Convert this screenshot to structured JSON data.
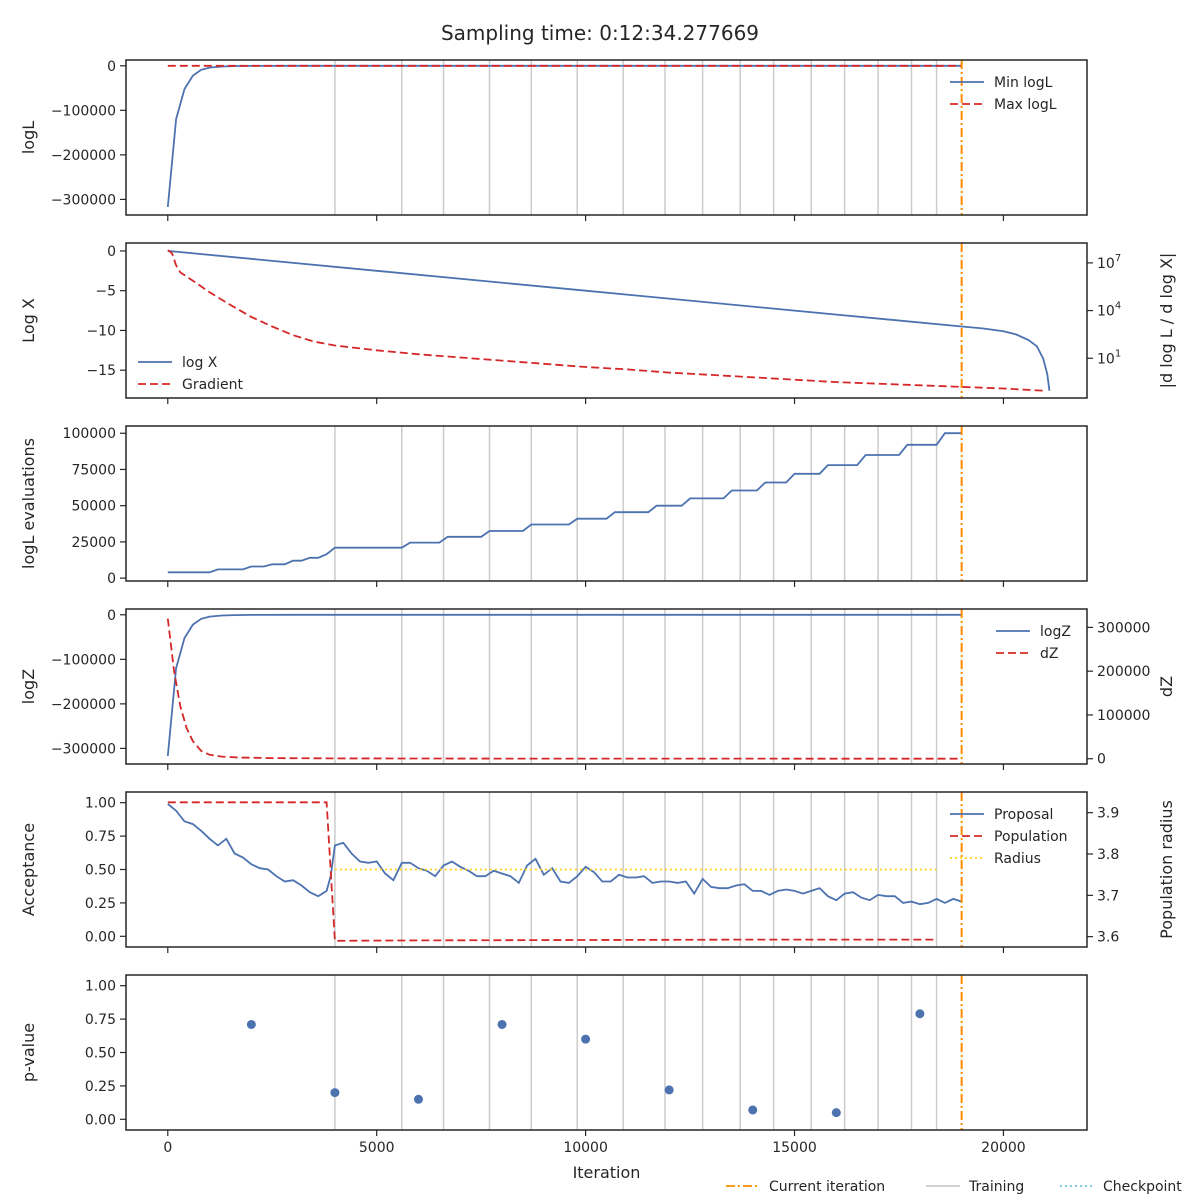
{
  "title": "Sampling time: 0:12:34.277669",
  "colors": {
    "blue": "#4c72b0",
    "red": "#d62728",
    "orange": "#ff8c00",
    "gold": "#ffd21a",
    "grey": "#cccccc",
    "cyan": "#6ec8dc"
  },
  "chart_data": [
    {
      "type": "line",
      "ylabel": "logL",
      "xlim": [
        -1000,
        22000
      ],
      "ylim": [
        -335000,
        13000
      ],
      "yticks": [
        0,
        -100000,
        -200000,
        -300000
      ],
      "ytick_labels": [
        "0",
        "−100000",
        "−200000",
        "−300000"
      ],
      "legend": "top-right",
      "series": [
        {
          "name": "Min logL",
          "style": "solid",
          "color": "#4c72b0",
          "x": [
            0,
            200,
            400,
            600,
            800,
            1000,
            1300,
            1600,
            2000,
            3000,
            6000,
            10000,
            15000,
            19000
          ],
          "y": [
            -317000,
            -120000,
            -52000,
            -22000,
            -9000,
            -4000,
            -1500,
            -600,
            -200,
            -50,
            -10,
            0,
            0,
            0
          ]
        },
        {
          "name": "Max logL",
          "style": "dashed",
          "color": "#d62728",
          "x": [
            0,
            19000
          ],
          "y": [
            0,
            0
          ]
        }
      ]
    },
    {
      "type": "line",
      "ylabel": "Log X",
      "ylabel_right": "|d log L / d log X|",
      "xlim": [
        -1000,
        22000
      ],
      "ylim": [
        -18.5,
        1
      ],
      "yticks": [
        0,
        -5,
        -10,
        -15
      ],
      "ytick_labels": [
        "0",
        "−5",
        "−10",
        "−15"
      ],
      "right_ticks": [
        {
          "label": "10",
          "exp": "7",
          "value": -1.5
        },
        {
          "label": "10",
          "exp": "4",
          "value": -7.5
        },
        {
          "label": "10",
          "exp": "1",
          "value": -13.5
        }
      ],
      "legend": "bottom-left",
      "series": [
        {
          "name": "log X",
          "style": "solid",
          "color": "#4c72b0",
          "x": [
            0,
            5000,
            10000,
            15000,
            19000,
            19500,
            20000,
            20300,
            20600,
            20800,
            20950,
            21050,
            21100
          ],
          "y": [
            0,
            -2.5,
            -5,
            -7.5,
            -9.5,
            -9.75,
            -10.1,
            -10.5,
            -11.2,
            -12,
            -13.5,
            -15.5,
            -17.6
          ]
        },
        {
          "name": "Gradient",
          "style": "dashed",
          "color": "#d62728",
          "x": [
            0,
            100,
            200,
            300,
            500,
            700,
            1000,
            1500,
            2000,
            2500,
            3000,
            3500,
            4000,
            5000,
            6000,
            7000,
            8000,
            9000,
            10000,
            11000,
            12000,
            13000,
            14000,
            15000,
            16000,
            17000,
            18000,
            19000,
            20000,
            21000
          ],
          "y": [
            0.1,
            -0.3,
            -1.8,
            -2.7,
            -3.4,
            -4.1,
            -5.2,
            -6.8,
            -8.3,
            -9.5,
            -10.6,
            -11.4,
            -11.9,
            -12.5,
            -13,
            -13.4,
            -13.8,
            -14.2,
            -14.6,
            -14.9,
            -15.3,
            -15.6,
            -15.9,
            -16.2,
            -16.5,
            -16.7,
            -16.9,
            -17.1,
            -17.3,
            -17.6
          ]
        }
      ]
    },
    {
      "type": "line",
      "ylabel": "logL evaluations",
      "xlim": [
        -1000,
        22000
      ],
      "ylim": [
        -2000,
        105000
      ],
      "yticks": [
        0,
        25000,
        50000,
        75000,
        100000
      ],
      "ytick_labels": [
        "0",
        "25000",
        "50000",
        "75000",
        "100000"
      ],
      "series": [
        {
          "name": "",
          "style": "solid",
          "color": "#4c72b0",
          "x": [
            0,
            1000,
            1200,
            1800,
            2000,
            2300,
            2500,
            2800,
            3000,
            3200,
            3400,
            3600,
            3800,
            4000,
            5600,
            5800,
            6500,
            6700,
            7500,
            7700,
            8500,
            8700,
            9600,
            9800,
            10500,
            10700,
            11500,
            11700,
            12300,
            12500,
            13300,
            13500,
            14100,
            14300,
            14800,
            15000,
            15600,
            15800,
            16500,
            16700,
            17500,
            17700,
            18400,
            18600,
            19000
          ],
          "y": [
            4000,
            4000,
            6000,
            6000,
            8000,
            8000,
            9500,
            9500,
            12000,
            12000,
            14000,
            14000,
            16500,
            21000,
            21000,
            24500,
            24500,
            28500,
            28500,
            32500,
            32500,
            37000,
            37000,
            41000,
            41000,
            45500,
            45500,
            50000,
            50000,
            55000,
            55000,
            60500,
            60500,
            66000,
            66000,
            72000,
            72000,
            78000,
            78000,
            85000,
            85000,
            92000,
            92000,
            100000,
            100000
          ]
        }
      ]
    },
    {
      "type": "line",
      "ylabel": "logZ",
      "ylabel_right": "dZ",
      "xlim": [
        -1000,
        22000
      ],
      "ylim": [
        -335000,
        13000
      ],
      "yticks": [
        0,
        -100000,
        -200000,
        -300000
      ],
      "ytick_labels": [
        "0",
        "−100000",
        "−200000",
        "−300000"
      ],
      "right_ylim": [
        -12000,
        342000
      ],
      "right_yticks": [
        0,
        100000,
        200000,
        300000
      ],
      "right_ytick_labels": [
        "0",
        "100000",
        "200000",
        "300000"
      ],
      "legend": "top-right",
      "series": [
        {
          "name": "logZ",
          "style": "solid",
          "color": "#4c72b0",
          "axis": "left",
          "x": [
            0,
            200,
            400,
            600,
            800,
            1000,
            1300,
            1600,
            2000,
            3000,
            6000,
            10000,
            15000,
            19000
          ],
          "y": [
            -317000,
            -120000,
            -52000,
            -22000,
            -9000,
            -4000,
            -1500,
            -600,
            -200,
            -50,
            -10,
            0,
            0,
            0
          ]
        },
        {
          "name": "dZ",
          "style": "dashed",
          "color": "#d62728",
          "axis": "right",
          "x": [
            0,
            150,
            300,
            450,
            600,
            800,
            1000,
            1300,
            1700,
            2500,
            4000,
            8000,
            19000
          ],
          "y": [
            320000,
            200000,
            120000,
            70000,
            40000,
            18000,
            9000,
            5000,
            2800,
            1500,
            800,
            300,
            100
          ]
        }
      ]
    },
    {
      "type": "line",
      "ylabel": "Acceptance",
      "ylabel_right": "Population radius",
      "xlim": [
        -1000,
        22000
      ],
      "ylim": [
        -0.08,
        1.08
      ],
      "yticks": [
        0,
        0.25,
        0.5,
        0.75,
        1.0
      ],
      "ytick_labels": [
        "0.00",
        "0.25",
        "0.50",
        "0.75",
        "1.00"
      ],
      "right_ylim": [
        3.575,
        3.95
      ],
      "right_yticks": [
        3.6,
        3.7,
        3.8,
        3.9
      ],
      "right_ytick_labels": [
        "3.6",
        "3.7",
        "3.8",
        "3.9"
      ],
      "legend": "top-right",
      "series": [
        {
          "name": "Proposal",
          "style": "solid",
          "color": "#4c72b0",
          "axis": "left",
          "x": [
            0,
            200,
            400,
            600,
            800,
            1000,
            1200,
            1400,
            1600,
            1800,
            2000,
            2200,
            2400,
            2600,
            2800,
            3000,
            3200,
            3400,
            3600,
            3800,
            3900,
            4000,
            4200,
            4400,
            4600,
            4800,
            5000,
            5200,
            5400,
            5600,
            5800,
            6000,
            6200,
            6400,
            6600,
            6800,
            7000,
            7200,
            7400,
            7600,
            7800,
            8000,
            8200,
            8400,
            8600,
            8800,
            9000,
            9200,
            9400,
            9600,
            9800,
            10000,
            10200,
            10400,
            10600,
            10800,
            11000,
            11200,
            11400,
            11600,
            11800,
            12000,
            12200,
            12400,
            12600,
            12800,
            13000,
            13200,
            13400,
            13600,
            13800,
            14000,
            14200,
            14400,
            14600,
            14800,
            15000,
            15200,
            15400,
            15600,
            15800,
            16000,
            16200,
            16400,
            16600,
            16800,
            17000,
            17200,
            17400,
            17600,
            17800,
            18000,
            18200,
            18400,
            18600,
            18800,
            19000
          ],
          "y": [
            0.99,
            0.94,
            0.86,
            0.84,
            0.79,
            0.73,
            0.68,
            0.73,
            0.62,
            0.59,
            0.54,
            0.51,
            0.5,
            0.45,
            0.41,
            0.42,
            0.38,
            0.33,
            0.3,
            0.34,
            0.45,
            0.68,
            0.7,
            0.62,
            0.56,
            0.55,
            0.56,
            0.47,
            0.42,
            0.55,
            0.55,
            0.51,
            0.49,
            0.45,
            0.53,
            0.56,
            0.52,
            0.49,
            0.45,
            0.45,
            0.49,
            0.47,
            0.45,
            0.4,
            0.53,
            0.58,
            0.46,
            0.51,
            0.41,
            0.4,
            0.45,
            0.52,
            0.48,
            0.41,
            0.41,
            0.46,
            0.44,
            0.44,
            0.45,
            0.4,
            0.41,
            0.41,
            0.4,
            0.41,
            0.32,
            0.43,
            0.37,
            0.36,
            0.36,
            0.38,
            0.39,
            0.34,
            0.34,
            0.31,
            0.34,
            0.35,
            0.34,
            0.32,
            0.34,
            0.36,
            0.3,
            0.27,
            0.32,
            0.33,
            0.29,
            0.27,
            0.31,
            0.3,
            0.3,
            0.25,
            0.26,
            0.24,
            0.25,
            0.28,
            0.25,
            0.28,
            0.26
          ]
        },
        {
          "name": "Population",
          "style": "dashed",
          "color": "#d62728",
          "axis": "right",
          "x": [
            0,
            3800,
            4000,
            6000,
            10000,
            14000,
            18400
          ],
          "y": [
            3.925,
            3.925,
            3.59,
            3.591,
            3.592,
            3.593,
            3.593
          ]
        },
        {
          "name": "Radius",
          "style": "dotted",
          "color": "#ffd21a",
          "axis": "left",
          "x": [
            4000,
            18400
          ],
          "y": [
            0.5,
            0.5
          ]
        }
      ]
    },
    {
      "type": "scatter",
      "ylabel": "p-value",
      "xlabel": "Iteration",
      "xlim": [
        -1000,
        22000
      ],
      "ylim": [
        -0.08,
        1.08
      ],
      "yticks": [
        0,
        0.25,
        0.5,
        0.75,
        1.0
      ],
      "ytick_labels": [
        "0.00",
        "0.25",
        "0.50",
        "0.75",
        "1.00"
      ],
      "xticks": [
        0,
        5000,
        10000,
        15000,
        20000
      ],
      "xtick_labels": [
        "0",
        "5000",
        "10000",
        "15000",
        "20000"
      ],
      "series": [
        {
          "name": "",
          "color": "#4c72b0",
          "x": [
            2000,
            4000,
            6000,
            8000,
            10000,
            12000,
            14000,
            16000,
            18000
          ],
          "y": [
            0.71,
            0.2,
            0.15,
            0.71,
            0.6,
            0.22,
            0.07,
            0.05,
            0.79
          ]
        }
      ]
    }
  ],
  "training_iterations": [
    4000,
    5600,
    6600,
    7700,
    8700,
    9800,
    10900,
    11900,
    12800,
    13700,
    14500,
    15400,
    16200,
    17000,
    17800,
    18400
  ],
  "current_iteration": 19000,
  "figure_legend": [
    {
      "label": "Current iteration",
      "style": "dashdot",
      "color": "#ff8c00"
    },
    {
      "label": "Training",
      "style": "solid",
      "color": "#cccccc"
    },
    {
      "label": "Checkpoint",
      "style": "dotted",
      "color": "#6ec8dc"
    }
  ]
}
